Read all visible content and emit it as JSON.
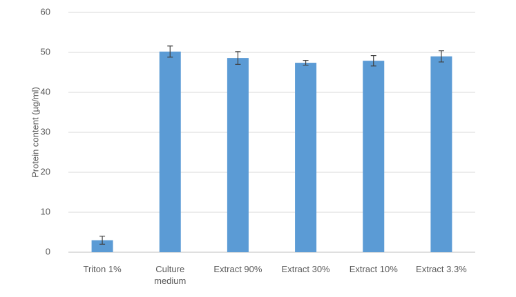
{
  "chart_data": {
    "type": "bar",
    "y_label": "Protein content (µg/ml)",
    "categories": [
      "Triton 1%",
      "Culture medium",
      "Extract 90%",
      "Extract 30%",
      "Extract 10%",
      "Extract 3.3%"
    ],
    "values": [
      3,
      50.2,
      48.6,
      47.4,
      47.9,
      49.0
    ],
    "errors": [
      1.0,
      1.4,
      1.6,
      0.6,
      1.3,
      1.4
    ],
    "color": "#5b9bd5",
    "ylim": [
      0,
      60
    ],
    "yticks": [
      0,
      10,
      20,
      30,
      40,
      50,
      60
    ],
    "grid": true
  }
}
